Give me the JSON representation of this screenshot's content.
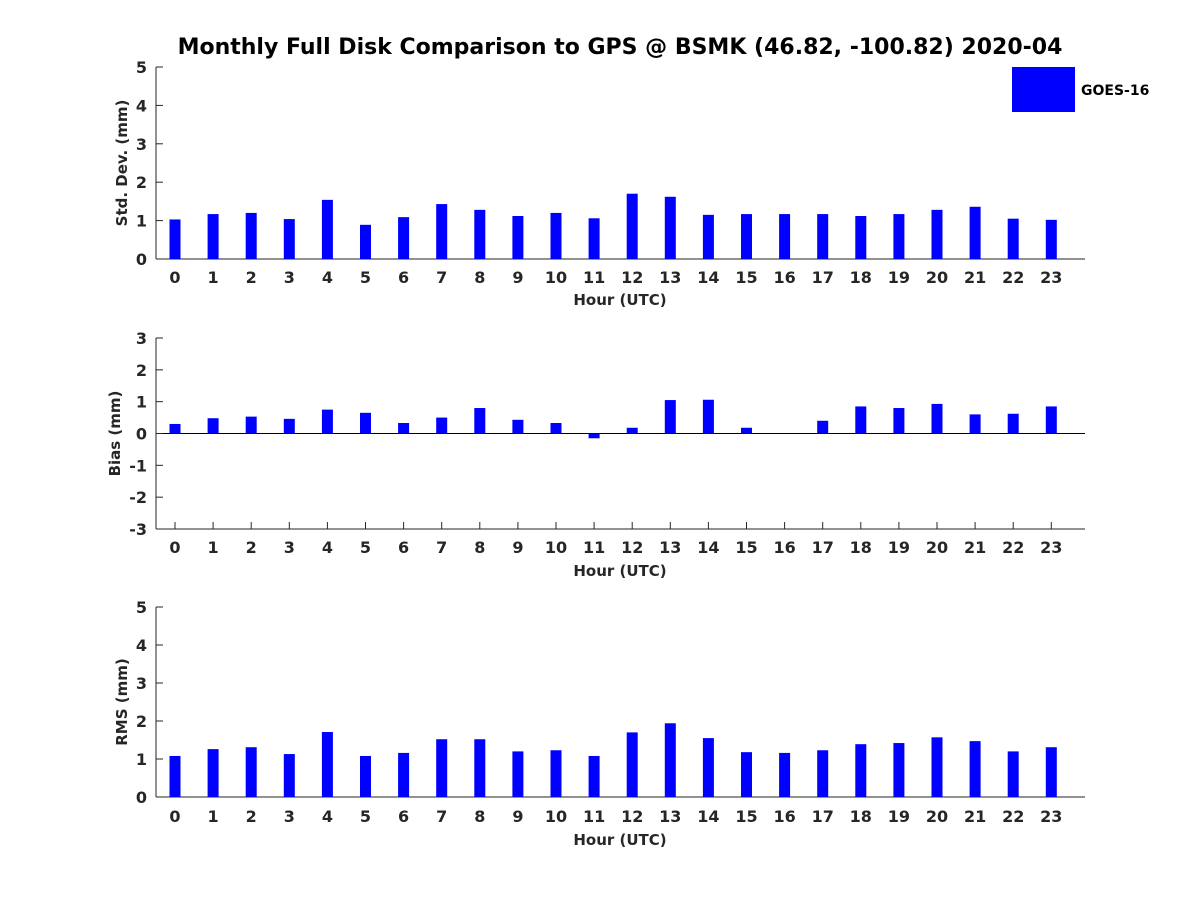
{
  "figure": {
    "title": "Monthly Full Disk Comparison to GPS @ BSMK (46.82, -100.82) 2020-04",
    "bar_color": "#0000ff",
    "legend": {
      "label": "GOES-16",
      "placement": "top-right"
    }
  },
  "chart_data": [
    {
      "type": "bar",
      "xlabel": "Hour (UTC)",
      "ylabel": "Std. Dev. (mm)",
      "ylim": [
        0,
        5
      ],
      "yticks": [
        0,
        1,
        2,
        3,
        4,
        5
      ],
      "categories": [
        "0",
        "1",
        "2",
        "3",
        "4",
        "5",
        "6",
        "7",
        "8",
        "9",
        "10",
        "11",
        "12",
        "13",
        "14",
        "15",
        "16",
        "17",
        "18",
        "19",
        "20",
        "21",
        "22",
        "23"
      ],
      "series": [
        {
          "name": "GOES-16",
          "values": [
            1.03,
            1.17,
            1.2,
            1.04,
            1.54,
            0.89,
            1.09,
            1.43,
            1.28,
            1.12,
            1.2,
            1.06,
            1.7,
            1.62,
            1.15,
            1.17,
            1.17,
            1.17,
            1.12,
            1.17,
            1.28,
            1.36,
            1.05,
            1.02
          ]
        }
      ]
    },
    {
      "type": "bar",
      "xlabel": "Hour (UTC)",
      "ylabel": "Bias (mm)",
      "ylim": [
        -3,
        3
      ],
      "yticks": [
        -3,
        -2,
        -1,
        0,
        1,
        2,
        3
      ],
      "zero_line": true,
      "categories": [
        "0",
        "1",
        "2",
        "3",
        "4",
        "5",
        "6",
        "7",
        "8",
        "9",
        "10",
        "11",
        "12",
        "13",
        "14",
        "15",
        "16",
        "17",
        "18",
        "19",
        "20",
        "21",
        "22",
        "23"
      ],
      "series": [
        {
          "name": "GOES-16",
          "values": [
            0.3,
            0.48,
            0.53,
            0.46,
            0.75,
            0.65,
            0.33,
            0.5,
            0.8,
            0.43,
            0.33,
            -0.15,
            0.18,
            1.05,
            1.06,
            0.18,
            0.0,
            0.4,
            0.85,
            0.8,
            0.93,
            0.6,
            0.62,
            0.85
          ]
        }
      ]
    },
    {
      "type": "bar",
      "xlabel": "Hour (UTC)",
      "ylabel": "RMS (mm)",
      "ylim": [
        0,
        5
      ],
      "yticks": [
        0,
        1,
        2,
        3,
        4,
        5
      ],
      "categories": [
        "0",
        "1",
        "2",
        "3",
        "4",
        "5",
        "6",
        "7",
        "8",
        "9",
        "10",
        "11",
        "12",
        "13",
        "14",
        "15",
        "16",
        "17",
        "18",
        "19",
        "20",
        "21",
        "22",
        "23"
      ],
      "series": [
        {
          "name": "GOES-16",
          "values": [
            1.08,
            1.26,
            1.31,
            1.13,
            1.71,
            1.08,
            1.16,
            1.52,
            1.52,
            1.2,
            1.23,
            1.08,
            1.7,
            1.94,
            1.55,
            1.18,
            1.16,
            1.23,
            1.39,
            1.42,
            1.57,
            1.47,
            1.2,
            1.31
          ]
        }
      ]
    }
  ]
}
